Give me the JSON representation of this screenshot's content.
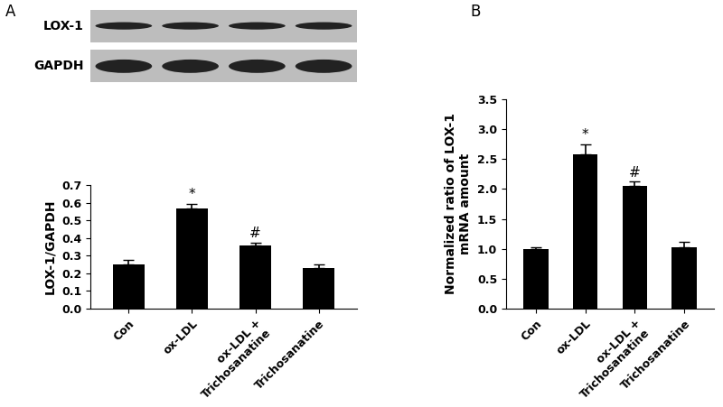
{
  "chart_data": [
    {
      "type": "bar",
      "panel": "A",
      "blot": {
        "rows": [
          "LOX-1",
          "GAPDH"
        ]
      },
      "categories": [
        "Con",
        "ox-LDL",
        "ox-LDL +\nTrichosanatine",
        "Trichosanatine"
      ],
      "values": [
        0.25,
        0.565,
        0.36,
        0.23
      ],
      "errors": [
        0.025,
        0.028,
        0.015,
        0.02
      ],
      "significance": [
        null,
        "*",
        "#",
        null
      ],
      "y_label": "LOX-1/GAPDH",
      "color": "#000000",
      "ylim": [
        0,
        0.7
      ],
      "yticks": [
        0.0,
        0.1,
        0.2,
        0.3,
        0.4,
        0.5,
        0.6,
        0.7
      ]
    },
    {
      "type": "bar",
      "panel": "B",
      "categories": [
        "Con",
        "ox-LDL",
        "ox-LDL +\nTrichosanatine",
        "Trichosanatine"
      ],
      "values": [
        1.0,
        2.58,
        2.05,
        1.03
      ],
      "errors": [
        0.03,
        0.17,
        0.07,
        0.08
      ],
      "significance": [
        null,
        "*",
        "#",
        null
      ],
      "y_label": "Normalized ratio of LOX-1\nmRNA amount",
      "color": "#000000",
      "ylim": [
        0,
        3.5
      ],
      "yticks": [
        0.0,
        0.5,
        1.0,
        1.5,
        2.0,
        2.5,
        3.0,
        3.5
      ]
    }
  ]
}
